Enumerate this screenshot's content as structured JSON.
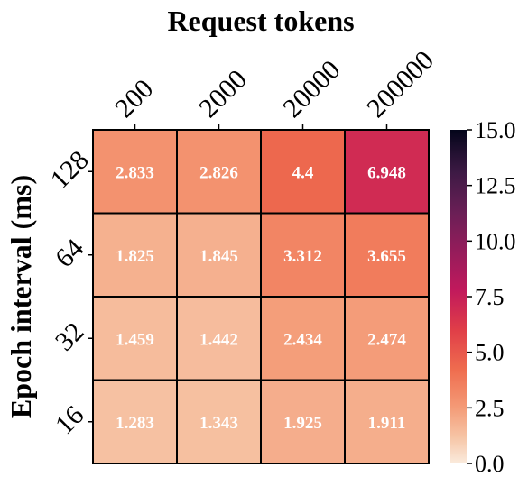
{
  "chart_data": {
    "type": "heatmap",
    "title": "",
    "xlabel": "Request tokens",
    "ylabel": "Epoch interval (ms)",
    "x_categories": [
      "200",
      "2000",
      "20000",
      "200000"
    ],
    "y_categories": [
      "128",
      "64",
      "32",
      "16"
    ],
    "values": [
      [
        2.833,
        2.826,
        4.4,
        6.948
      ],
      [
        1.825,
        1.845,
        3.312,
        3.655
      ],
      [
        1.459,
        1.442,
        2.434,
        2.474
      ],
      [
        1.283,
        1.343,
        1.925,
        1.911
      ]
    ],
    "value_labels": [
      [
        "2.833",
        "2.826",
        "4.4",
        "6.948"
      ],
      [
        "1.825",
        "1.845",
        "3.312",
        "3.655"
      ],
      [
        "1.459",
        "1.442",
        "2.434",
        "2.474"
      ],
      [
        "1.283",
        "1.343",
        "1.925",
        "1.911"
      ]
    ],
    "colorbar": {
      "range": [
        0.0,
        15.0
      ],
      "ticks": [
        0.0,
        2.5,
        5.0,
        7.5,
        10.0,
        12.5,
        15.0
      ],
      "tick_labels": [
        "0.0",
        "2.5",
        "5.0",
        "7.5",
        "10.0",
        "12.5",
        "15.0"
      ],
      "colormap": "rocket_r"
    },
    "grid": false,
    "legend": "colorbar-right"
  }
}
